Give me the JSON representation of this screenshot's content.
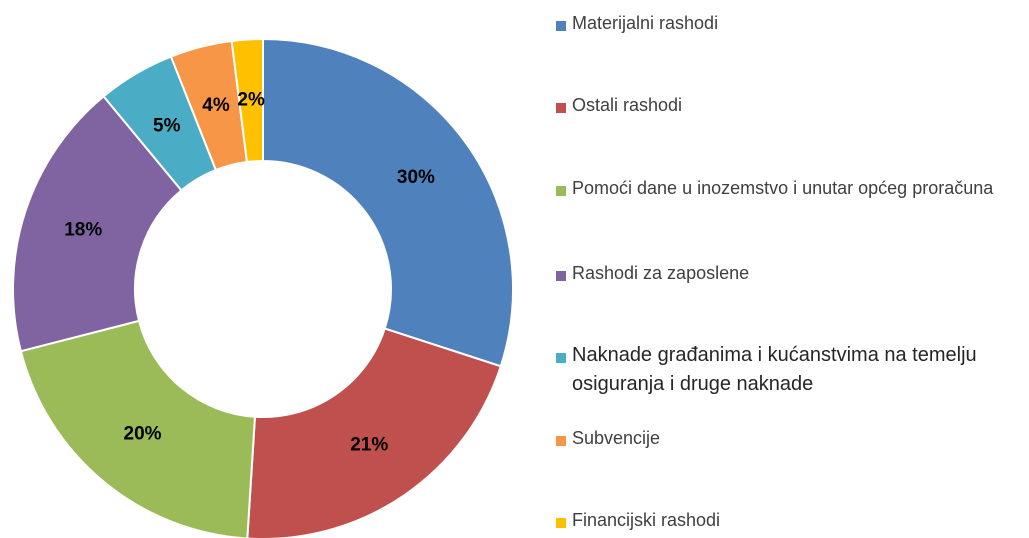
{
  "chart_data": {
    "type": "donut",
    "categories": [
      "Materijalni rashodi",
      "Ostali rashodi",
      "Pomoći dane u inozemstvo i unutar općeg proračuna",
      "Rashodi za zaposlene",
      "Naknade građanima i kućanstvima na temelju osiguranja i druge naknade",
      "Subvencije",
      "Financijski rashodi"
    ],
    "values": [
      30,
      21,
      20,
      18,
      5,
      4,
      2
    ],
    "value_labels": [
      "30%",
      "21%",
      "20%",
      "18%",
      "5%",
      "4%",
      "2%"
    ],
    "colors": [
      "#4f81bd",
      "#c0504d",
      "#9bbb59",
      "#8064a2",
      "#4bacc6",
      "#f79646",
      "#ffc000"
    ],
    "legend": "right"
  }
}
